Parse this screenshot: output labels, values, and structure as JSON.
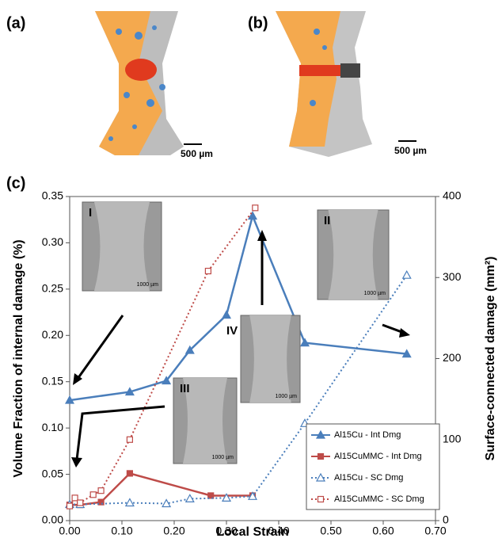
{
  "figure": {
    "panel_labels": [
      "(a)",
      "(b)",
      "(c)"
    ],
    "scale_bar_labels": [
      "500 µm",
      "500 µm"
    ],
    "insets": [
      {
        "label": "I",
        "scale": "1000 µm"
      },
      {
        "label": "II",
        "scale": "1000 µm"
      },
      {
        "label": "III",
        "scale": "1000 µm"
      },
      {
        "label": "IV",
        "scale": "1000 µm"
      }
    ]
  },
  "chart_data": {
    "type": "scatter",
    "x_label": "Local Strain",
    "y_label": "Volume Fraction of internal damage (%)",
    "y2_label": "Surface-connected damage (mm²)",
    "xlim": [
      0,
      0.7
    ],
    "xticks": [
      {
        "value": 0,
        "label": "0.00"
      },
      {
        "value": 0.1,
        "label": "0.10"
      },
      {
        "value": 0.2,
        "label": "0.20"
      },
      {
        "value": 0.3,
        "label": "0.30"
      },
      {
        "value": 0.4,
        "label": "0.40"
      },
      {
        "value": 0.5,
        "label": "0.50"
      },
      {
        "value": 0.6,
        "label": "0.60"
      },
      {
        "value": 0.7,
        "label": "0.70"
      }
    ],
    "ylim": [
      0,
      0.35
    ],
    "yticks": [
      {
        "value": 0,
        "label": "0.00"
      },
      {
        "value": 0.05,
        "label": "0.05"
      },
      {
        "value": 0.1,
        "label": "0.10"
      },
      {
        "value": 0.15,
        "label": "0.15"
      },
      {
        "value": 0.2,
        "label": "0.20"
      },
      {
        "value": 0.25,
        "label": "0.25"
      },
      {
        "value": 0.3,
        "label": "0.30"
      },
      {
        "value": 0.35,
        "label": "0.35"
      }
    ],
    "y2lim": [
      0,
      400
    ],
    "y2ticks": [
      0,
      100,
      200,
      300,
      400
    ],
    "legend": "lower right",
    "series": [
      {
        "name": "Al15Cu - Int Dmg",
        "color": "#4a7ebb",
        "style": "solid",
        "marker": "triangle",
        "x": [
          0,
          0.115,
          0.185,
          0.23,
          0.3,
          0.35,
          0.45,
          0.645
        ],
        "values": [
          0.13,
          0.139,
          0.151,
          0.184,
          0.222,
          0.329,
          0.192,
          0.18
        ]
      },
      {
        "name": "Al15CuMMC - Int Dmg",
        "color": "#be4b48",
        "style": "solid",
        "marker": "square",
        "x": [
          0,
          0.02,
          0.06,
          0.115,
          0.27,
          0.35
        ],
        "values": [
          0.017,
          0.017,
          0.02,
          0.051,
          0.027,
          0.027
        ]
      },
      {
        "name": "Al15Cu - SC Dmg",
        "color": "#4a7ebb",
        "style": "dotted",
        "marker": "triangle-open",
        "axis": "y2",
        "x": [
          0,
          0.02,
          0.115,
          0.185,
          0.23,
          0.3,
          0.35,
          0.45,
          0.645
        ],
        "values": [
          20,
          20,
          22,
          21,
          27,
          28,
          30,
          120,
          303
        ]
      },
      {
        "name": "Al15CuMMC - SC Dmg",
        "color": "#be4b48",
        "style": "dotted",
        "marker": "square-open",
        "axis": "y2",
        "x": [
          0,
          0.01,
          0.02,
          0.045,
          0.06,
          0.115,
          0.265,
          0.355
        ],
        "values": [
          18,
          28,
          22,
          32,
          37,
          100,
          308,
          386
        ]
      }
    ]
  }
}
